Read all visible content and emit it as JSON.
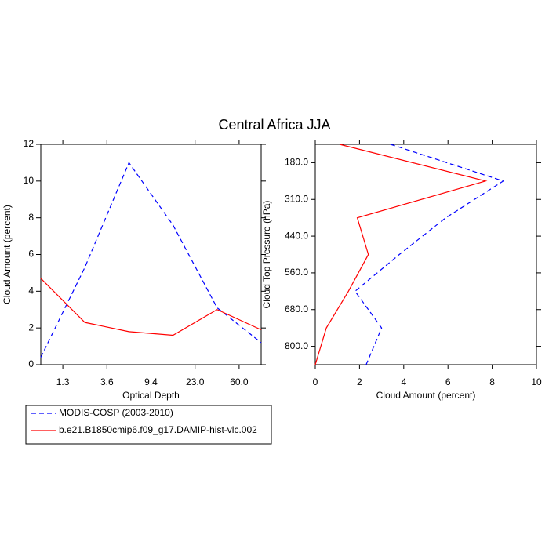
{
  "title": "Central Africa JJA",
  "chart_data": [
    {
      "type": "line",
      "orientation": "vertical",
      "x_label": "Optical Depth",
      "y_label": "Cloud Amount (percent)",
      "x": [
        0,
        1,
        2,
        3,
        4,
        5
      ],
      "xlim": [
        0,
        5
      ],
      "xticks": [
        {
          "value": 0.5,
          "label": "1.3"
        },
        {
          "value": 1.5,
          "label": "3.6"
        },
        {
          "value": 2.5,
          "label": "9.4"
        },
        {
          "value": 3.5,
          "label": "23.0"
        },
        {
          "value": 4.5,
          "label": "60.0"
        }
      ],
      "ylim": [
        0,
        12
      ],
      "yticks": [
        0,
        2,
        4,
        6,
        8,
        10,
        12
      ],
      "series": [
        {
          "name": "MODIS-COSP (2003-2010)",
          "color": "#0000ff",
          "dash": true,
          "values": [
            0.4,
            5.3,
            11.0,
            7.6,
            3.1,
            1.2
          ]
        },
        {
          "name": "b.e21.B1850cmip6.f09_g17.DAMIP-hist-vlc.002",
          "color": "#ff0000",
          "dash": false,
          "values": [
            4.7,
            2.3,
            1.8,
            1.6,
            3.0,
            1.9
          ]
        }
      ]
    },
    {
      "type": "line",
      "orientation": "horizontal",
      "x_label": "Cloud Amount (percent)",
      "y_label": "Cloud Top Pressure (hPa)",
      "y": [
        0,
        1,
        2,
        3,
        4,
        5,
        6
      ],
      "ylim": [
        0,
        6
      ],
      "yticks": [
        {
          "value": 0.5,
          "label": "180.0"
        },
        {
          "value": 1.5,
          "label": "310.0"
        },
        {
          "value": 2.5,
          "label": "440.0"
        },
        {
          "value": 3.5,
          "label": "560.0"
        },
        {
          "value": 4.5,
          "label": "680.0"
        },
        {
          "value": 5.5,
          "label": "800.0"
        }
      ],
      "xlim": [
        0,
        10
      ],
      "xticks": [
        0,
        2,
        4,
        6,
        8,
        10
      ],
      "series": [
        {
          "color": "#0000ff",
          "dash": true,
          "values": [
            3.4,
            8.5,
            5.9,
            3.8,
            1.8,
            3.0,
            2.3
          ]
        },
        {
          "color": "#ff0000",
          "dash": false,
          "values": [
            1.1,
            7.7,
            1.9,
            2.4,
            1.5,
            0.5,
            0.0
          ]
        }
      ]
    }
  ]
}
